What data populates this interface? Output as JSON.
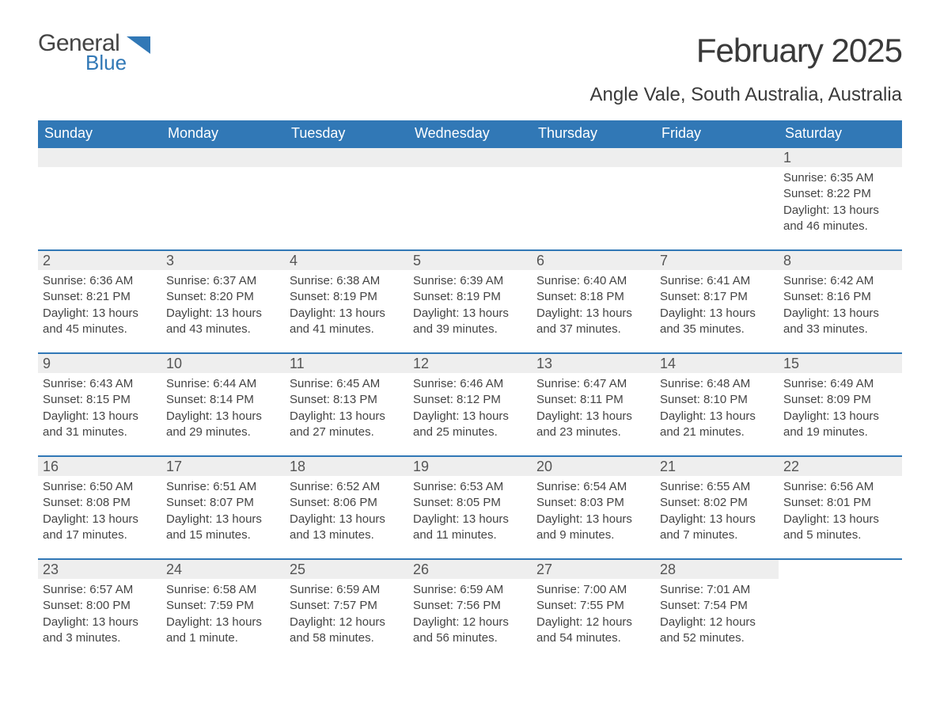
{
  "logo": {
    "general": "General",
    "blue": "Blue",
    "tri_color": "#3178b6"
  },
  "title": "February 2025",
  "location": "Angle Vale, South Australia, Australia",
  "colors": {
    "header_bg": "#3178b6",
    "header_text": "#ffffff",
    "strip_bg": "#eeeeee",
    "row_border": "#3178b6",
    "body_text": "#444444",
    "page_bg": "#ffffff"
  },
  "weekdays": [
    "Sunday",
    "Monday",
    "Tuesday",
    "Wednesday",
    "Thursday",
    "Friday",
    "Saturday"
  ],
  "layout": {
    "columns": 7,
    "rows": 5,
    "first_weekday_index": 6,
    "day_label_fontsize": 18,
    "body_fontsize": 15
  },
  "days": [
    {
      "n": 1,
      "sunrise": "6:35 AM",
      "sunset": "8:22 PM",
      "daylight": "13 hours and 46 minutes."
    },
    {
      "n": 2,
      "sunrise": "6:36 AM",
      "sunset": "8:21 PM",
      "daylight": "13 hours and 45 minutes."
    },
    {
      "n": 3,
      "sunrise": "6:37 AM",
      "sunset": "8:20 PM",
      "daylight": "13 hours and 43 minutes."
    },
    {
      "n": 4,
      "sunrise": "6:38 AM",
      "sunset": "8:19 PM",
      "daylight": "13 hours and 41 minutes."
    },
    {
      "n": 5,
      "sunrise": "6:39 AM",
      "sunset": "8:19 PM",
      "daylight": "13 hours and 39 minutes."
    },
    {
      "n": 6,
      "sunrise": "6:40 AM",
      "sunset": "8:18 PM",
      "daylight": "13 hours and 37 minutes."
    },
    {
      "n": 7,
      "sunrise": "6:41 AM",
      "sunset": "8:17 PM",
      "daylight": "13 hours and 35 minutes."
    },
    {
      "n": 8,
      "sunrise": "6:42 AM",
      "sunset": "8:16 PM",
      "daylight": "13 hours and 33 minutes."
    },
    {
      "n": 9,
      "sunrise": "6:43 AM",
      "sunset": "8:15 PM",
      "daylight": "13 hours and 31 minutes."
    },
    {
      "n": 10,
      "sunrise": "6:44 AM",
      "sunset": "8:14 PM",
      "daylight": "13 hours and 29 minutes."
    },
    {
      "n": 11,
      "sunrise": "6:45 AM",
      "sunset": "8:13 PM",
      "daylight": "13 hours and 27 minutes."
    },
    {
      "n": 12,
      "sunrise": "6:46 AM",
      "sunset": "8:12 PM",
      "daylight": "13 hours and 25 minutes."
    },
    {
      "n": 13,
      "sunrise": "6:47 AM",
      "sunset": "8:11 PM",
      "daylight": "13 hours and 23 minutes."
    },
    {
      "n": 14,
      "sunrise": "6:48 AM",
      "sunset": "8:10 PM",
      "daylight": "13 hours and 21 minutes."
    },
    {
      "n": 15,
      "sunrise": "6:49 AM",
      "sunset": "8:09 PM",
      "daylight": "13 hours and 19 minutes."
    },
    {
      "n": 16,
      "sunrise": "6:50 AM",
      "sunset": "8:08 PM",
      "daylight": "13 hours and 17 minutes."
    },
    {
      "n": 17,
      "sunrise": "6:51 AM",
      "sunset": "8:07 PM",
      "daylight": "13 hours and 15 minutes."
    },
    {
      "n": 18,
      "sunrise": "6:52 AM",
      "sunset": "8:06 PM",
      "daylight": "13 hours and 13 minutes."
    },
    {
      "n": 19,
      "sunrise": "6:53 AM",
      "sunset": "8:05 PM",
      "daylight": "13 hours and 11 minutes."
    },
    {
      "n": 20,
      "sunrise": "6:54 AM",
      "sunset": "8:03 PM",
      "daylight": "13 hours and 9 minutes."
    },
    {
      "n": 21,
      "sunrise": "6:55 AM",
      "sunset": "8:02 PM",
      "daylight": "13 hours and 7 minutes."
    },
    {
      "n": 22,
      "sunrise": "6:56 AM",
      "sunset": "8:01 PM",
      "daylight": "13 hours and 5 minutes."
    },
    {
      "n": 23,
      "sunrise": "6:57 AM",
      "sunset": "8:00 PM",
      "daylight": "13 hours and 3 minutes."
    },
    {
      "n": 24,
      "sunrise": "6:58 AM",
      "sunset": "7:59 PM",
      "daylight": "13 hours and 1 minute."
    },
    {
      "n": 25,
      "sunrise": "6:59 AM",
      "sunset": "7:57 PM",
      "daylight": "12 hours and 58 minutes."
    },
    {
      "n": 26,
      "sunrise": "6:59 AM",
      "sunset": "7:56 PM",
      "daylight": "12 hours and 56 minutes."
    },
    {
      "n": 27,
      "sunrise": "7:00 AM",
      "sunset": "7:55 PM",
      "daylight": "12 hours and 54 minutes."
    },
    {
      "n": 28,
      "sunrise": "7:01 AM",
      "sunset": "7:54 PM",
      "daylight": "12 hours and 52 minutes."
    }
  ],
  "labels": {
    "sunrise": "Sunrise:",
    "sunset": "Sunset:",
    "daylight": "Daylight:"
  }
}
